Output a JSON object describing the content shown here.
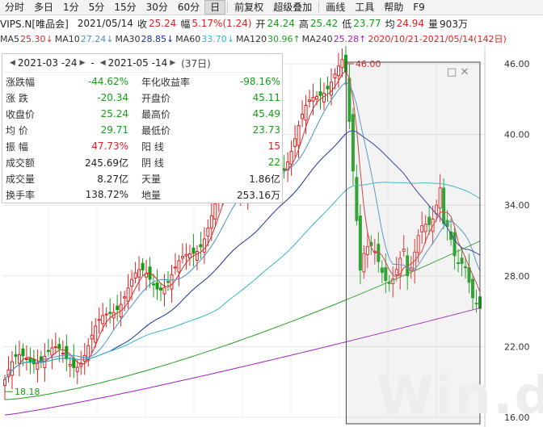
{
  "toolbar": {
    "items": [
      "分时",
      "多日",
      "1分",
      "5分",
      "15分",
      "30分",
      "60分",
      "日",
      "前复权",
      "超级叠加",
      "画线",
      "工具",
      "帮助",
      "F9"
    ],
    "active": "日"
  },
  "quote": {
    "code_name": "VIPS.N[唯品会]",
    "date": "2021/05/14",
    "close_label": "收",
    "close": "25.24",
    "change_label": "幅",
    "change": "5.17%(1.24)",
    "open_label": "开",
    "open": "24.24",
    "high_label": "高",
    "high": "25.42",
    "low_label": "低",
    "low": "23.77",
    "avg_label": "均",
    "avg": "24.94",
    "vol_label": "量",
    "vol": "903万"
  },
  "ma": {
    "ma5_label": "MA5",
    "ma5": "25.30↓",
    "ma10_label": "MA10",
    "ma10": "27.24↓",
    "ma30_label": "MA30",
    "ma30": "28.85↓",
    "ma60_label": "MA60",
    "ma60": "33.70↓",
    "ma120_label": "MA120",
    "ma120": "30.96↑",
    "ma240_label": "MA240",
    "ma240": "25.28↑",
    "range_label": "2020/10/21-2021/05/14(142日)"
  },
  "stats": {
    "start_date": "2021-03 -24",
    "end_date": "2021-05 -14",
    "days": "(37日)",
    "rows": [
      {
        "l": "涨跌幅",
        "v": "-44.62%",
        "vc": "green",
        "l2": "年化收益率",
        "v2": "-98.16%",
        "v2c": "green"
      },
      {
        "l": "涨 跌",
        "v": "-20.34",
        "vc": "green",
        "l2": "开盘价",
        "v2": "45.11",
        "v2c": "green"
      },
      {
        "l": "收盘价",
        "v": "25.24",
        "vc": "green",
        "l2": "最高价",
        "v2": "45.49",
        "v2c": "green"
      },
      {
        "l": "均 价",
        "v": "29.71",
        "vc": "green",
        "l2": "最低价",
        "v2": "23.73",
        "v2c": "green"
      },
      {
        "l": "振 幅",
        "v": "47.73%",
        "vc": "red",
        "l2": "阳 线",
        "v2": "15",
        "v2c": "red"
      },
      {
        "l": "成交额",
        "v": "245.69亿",
        "vc": "dark",
        "l2": "阴 线",
        "v2": "22",
        "v2c": "green"
      },
      {
        "l": "成交量",
        "v": "8.27亿",
        "vc": "dark",
        "l2": "天量",
        "v2": "1.86亿",
        "v2c": "dark"
      },
      {
        "l": "换手率",
        "v": "138.72%",
        "vc": "dark",
        "l2": "地量",
        "v2": "253.16万",
        "v2c": "dark"
      }
    ]
  },
  "chart_data": {
    "type": "candlestick",
    "y_ticks": [
      "46.00",
      "40.00",
      "34.00",
      "28.00",
      "22.00",
      "16.00"
    ],
    "y_range": [
      16,
      46
    ],
    "max_label": "46.00",
    "min_label": "18.18",
    "colors": {
      "up": "#e02020",
      "down": "#169d16",
      "ma5": "#d03030",
      "ma10": "#4a90c8",
      "ma30": "#1a2fa0",
      "ma60": "#30b6c8",
      "ma120": "#22a022",
      "ma240": "#a020c0"
    },
    "ma_last": {
      "ma5": 25.3,
      "ma10": 27.24,
      "ma30": 28.85,
      "ma60": 33.7,
      "ma120": 30.96,
      "ma240": 25.28
    },
    "selection_start_index": 95,
    "highest": 46.0,
    "lowest": 18.18
  },
  "watermark": "Win.d"
}
